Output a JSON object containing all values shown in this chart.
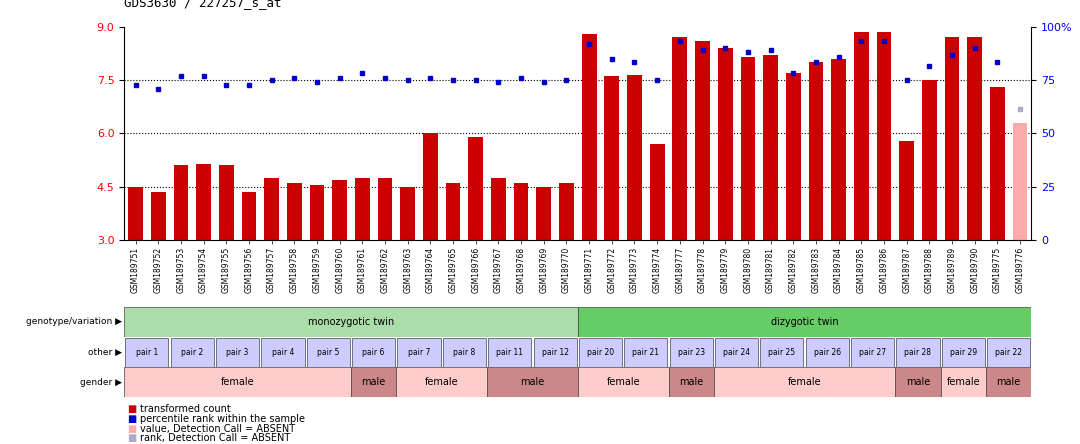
{
  "title": "GDS3630 / 227257_s_at",
  "samples": [
    "GSM189751",
    "GSM189752",
    "GSM189753",
    "GSM189754",
    "GSM189755",
    "GSM189756",
    "GSM189757",
    "GSM189758",
    "GSM189759",
    "GSM189760",
    "GSM189761",
    "GSM189762",
    "GSM189763",
    "GSM189764",
    "GSM189765",
    "GSM189766",
    "GSM189767",
    "GSM189768",
    "GSM189769",
    "GSM189770",
    "GSM189771",
    "GSM189772",
    "GSM189773",
    "GSM189774",
    "GSM189777",
    "GSM189778",
    "GSM189779",
    "GSM189780",
    "GSM189781",
    "GSM189782",
    "GSM189783",
    "GSM189784",
    "GSM189785",
    "GSM189786",
    "GSM189787",
    "GSM189788",
    "GSM189789",
    "GSM189790",
    "GSM189775",
    "GSM189776"
  ],
  "bar_values": [
    4.5,
    4.35,
    5.1,
    5.15,
    5.1,
    4.35,
    4.75,
    4.6,
    4.55,
    4.7,
    4.75,
    4.75,
    4.5,
    6.0,
    4.6,
    5.9,
    4.75,
    4.6,
    4.5,
    4.6,
    8.8,
    7.6,
    7.65,
    5.7,
    8.7,
    8.6,
    8.4,
    8.15,
    8.2,
    7.7,
    8.0,
    8.1,
    8.85,
    8.85,
    5.8,
    7.5,
    8.7,
    8.7,
    7.3,
    6.3
  ],
  "dot_values": [
    7.35,
    7.25,
    7.6,
    7.6,
    7.35,
    7.35,
    7.5,
    7.55,
    7.45,
    7.55,
    7.7,
    7.55,
    7.5,
    7.55,
    7.5,
    7.5,
    7.45,
    7.55,
    7.45,
    7.5,
    8.5,
    8.1,
    8.0,
    7.5,
    8.6,
    8.35,
    8.4,
    8.3,
    8.35,
    7.7,
    8.0,
    8.15,
    8.6,
    8.6,
    7.5,
    7.9,
    8.2,
    8.4,
    8.0,
    6.7
  ],
  "dot_absent": [
    false,
    false,
    false,
    false,
    false,
    false,
    false,
    false,
    false,
    false,
    false,
    false,
    false,
    false,
    false,
    false,
    false,
    false,
    false,
    false,
    false,
    false,
    false,
    false,
    false,
    false,
    false,
    false,
    false,
    false,
    false,
    false,
    false,
    false,
    false,
    false,
    false,
    false,
    false,
    true
  ],
  "bar_absent": [
    false,
    false,
    false,
    false,
    false,
    false,
    false,
    false,
    false,
    false,
    false,
    false,
    false,
    false,
    false,
    false,
    false,
    false,
    false,
    false,
    false,
    false,
    false,
    false,
    false,
    false,
    false,
    false,
    false,
    false,
    false,
    false,
    false,
    false,
    false,
    false,
    false,
    false,
    false,
    true
  ],
  "ylim": [
    3.0,
    9.0
  ],
  "yticks": [
    3,
    4.5,
    6,
    7.5,
    9
  ],
  "right_yticks": [
    0,
    25,
    50,
    75,
    100
  ],
  "right_ylim": [
    0,
    100
  ],
  "bar_color": "#cc0000",
  "dot_color": "#0000cc",
  "dot_absent_color": "#aaaacc",
  "bar_absent_color": "#ffaaaa",
  "genotype_segments": [
    {
      "text": "monozygotic twin",
      "start": 0,
      "end": 20,
      "color": "#aaddaa"
    },
    {
      "text": "dizygotic twin",
      "start": 20,
      "end": 40,
      "color": "#66cc66"
    }
  ],
  "other_pairs": [
    "pair 1",
    "pair 2",
    "pair 3",
    "pair 4",
    "pair 5",
    "pair 6",
    "pair 7",
    "pair 8",
    "pair 11",
    "pair 12",
    "pair 20",
    "pair 21",
    "pair 23",
    "pair 24",
    "pair 25",
    "pair 26",
    "pair 27",
    "pair 28",
    "pair 29",
    "pair 22"
  ],
  "other_color": "#ccccff",
  "gender_segments": [
    {
      "text": "female",
      "start": 0,
      "end": 10,
      "color": "#ffcccc"
    },
    {
      "text": "male",
      "start": 10,
      "end": 12,
      "color": "#cc8888"
    },
    {
      "text": "female",
      "start": 12,
      "end": 16,
      "color": "#ffcccc"
    },
    {
      "text": "male",
      "start": 16,
      "end": 20,
      "color": "#cc8888"
    },
    {
      "text": "female",
      "start": 20,
      "end": 24,
      "color": "#ffcccc"
    },
    {
      "text": "male",
      "start": 24,
      "end": 26,
      "color": "#cc8888"
    },
    {
      "text": "female",
      "start": 26,
      "end": 34,
      "color": "#ffcccc"
    },
    {
      "text": "male",
      "start": 34,
      "end": 36,
      "color": "#cc8888"
    },
    {
      "text": "female",
      "start": 36,
      "end": 38,
      "color": "#ffcccc"
    },
    {
      "text": "male",
      "start": 38,
      "end": 40,
      "color": "#cc8888"
    }
  ],
  "legend_items": [
    {
      "color": "#cc0000",
      "label": "transformed count"
    },
    {
      "color": "#0000cc",
      "label": "percentile rank within the sample"
    },
    {
      "color": "#ffaaaa",
      "label": "value, Detection Call = ABSENT"
    },
    {
      "color": "#aaaacc",
      "label": "rank, Detection Call = ABSENT"
    }
  ]
}
